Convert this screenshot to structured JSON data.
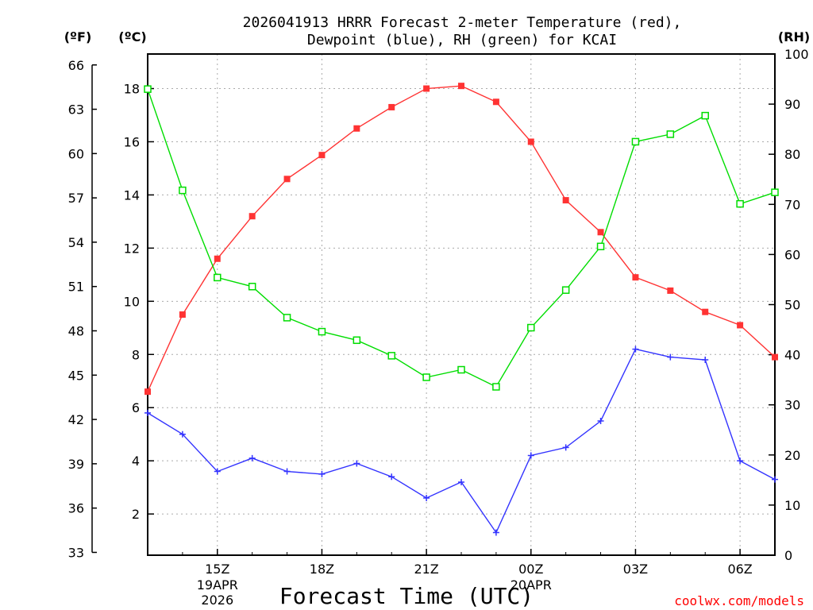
{
  "chart_data": {
    "type": "line",
    "title_line1": "2026041913 HRRR Forecast 2-meter Temperature (red),",
    "title_line2": "Dewpoint (blue), RH (green) for KCAI",
    "xlabel": "Forecast Time (UTC)",
    "credit": "coolwx.com/models",
    "left_unit_f": "(ºF)",
    "left_unit_c": "(ºC)",
    "right_unit": "(RH)",
    "f_ticks": [
      "66",
      "63",
      "60",
      "57",
      "54",
      "51",
      "48",
      "45",
      "42",
      "39",
      "36",
      "33"
    ],
    "c_ticks": [
      "18",
      "16",
      "14",
      "12",
      "10",
      "8",
      "6",
      "4",
      "2"
    ],
    "rh_ticks": [
      "100",
      "90",
      "80",
      "70",
      "60",
      "50",
      "40",
      "30",
      "20",
      "10",
      "0"
    ],
    "x_ticks": [
      {
        "hour": 15,
        "label": "15Z",
        "sub1": "19APR",
        "sub2": "2026"
      },
      {
        "hour": 18,
        "label": "18Z"
      },
      {
        "hour": 21,
        "label": "21Z"
      },
      {
        "hour": 24,
        "label": "00Z",
        "sub1": "20APR"
      },
      {
        "hour": 27,
        "label": "03Z"
      },
      {
        "hour": 30,
        "label": "06Z"
      }
    ],
    "x_range_hours": [
      13,
      31
    ],
    "temp_c_range": [
      0.45,
      19.3
    ],
    "rh_range": [
      0,
      100
    ],
    "hours": [
      13,
      14,
      15,
      16,
      17,
      18,
      19,
      20,
      21,
      22,
      23,
      24,
      25,
      26,
      27,
      28,
      29,
      30,
      31
    ],
    "series": [
      {
        "name": "Temperature",
        "unit": "C",
        "color": "#ff3333",
        "marker": "filled-square",
        "values": [
          6.6,
          9.5,
          11.6,
          13.2,
          14.6,
          15.5,
          16.5,
          17.3,
          18.0,
          18.1,
          17.5,
          16.0,
          13.8,
          12.6,
          10.9,
          10.4,
          9.6,
          9.1,
          7.9
        ]
      },
      {
        "name": "Dewpoint",
        "unit": "C",
        "color": "#3333ff",
        "marker": "plus",
        "values": [
          5.8,
          5.0,
          3.6,
          4.1,
          3.6,
          3.5,
          3.9,
          3.4,
          2.6,
          3.2,
          1.3,
          4.2,
          4.5,
          5.5,
          8.2,
          7.9,
          7.8,
          4.0,
          3.3
        ]
      },
      {
        "name": "RH",
        "unit": "%",
        "color": "#00dd00",
        "marker": "open-square",
        "values": [
          93.0,
          72.8,
          55.4,
          53.6,
          47.4,
          44.6,
          42.9,
          39.8,
          35.5,
          37.0,
          33.6,
          45.4,
          52.9,
          61.6,
          82.5,
          84.0,
          87.7,
          70.1,
          72.4
        ]
      }
    ],
    "grid": true
  }
}
